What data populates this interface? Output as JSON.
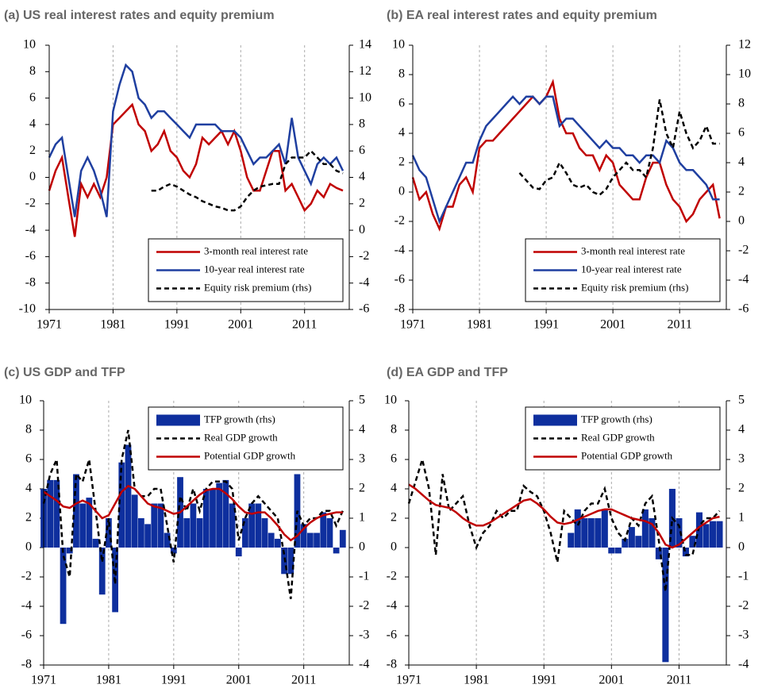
{
  "chart_data": [
    {
      "type": "combo",
      "title": "(a) US real interest rates and equity premium",
      "x": [
        1971,
        1972,
        1973,
        1974,
        1975,
        1976,
        1977,
        1978,
        1979,
        1980,
        1981,
        1982,
        1983,
        1984,
        1985,
        1986,
        1987,
        1988,
        1989,
        1990,
        1991,
        1992,
        1993,
        1994,
        1995,
        1996,
        1997,
        1998,
        1999,
        2000,
        2001,
        2002,
        2003,
        2004,
        2005,
        2006,
        2007,
        2008,
        2009,
        2010,
        2011,
        2012,
        2013,
        2014,
        2015,
        2016,
        2017
      ],
      "xlim": [
        1971,
        2018
      ],
      "xticks": [
        1971,
        1981,
        1991,
        2001,
        2011
      ],
      "xgrid": true,
      "ylim": [
        -10,
        10
      ],
      "yticks": [
        -10,
        -8,
        -6,
        -4,
        -2,
        0,
        2,
        4,
        6,
        8,
        10
      ],
      "y2lim": [
        -6,
        14
      ],
      "y2ticks": [
        -6,
        -4,
        -2,
        0,
        2,
        4,
        6,
        8,
        10,
        12,
        14
      ],
      "legend": "lower right",
      "series": [
        {
          "name": "3-month real interest rate",
          "kind": "line",
          "style": "solid",
          "color": "#c00000",
          "values": [
            -1,
            0.5,
            1.5,
            -1.5,
            -4.5,
            -0.5,
            -1.5,
            -0.5,
            -1.5,
            0,
            4,
            4.5,
            5,
            5.5,
            4,
            3.5,
            2,
            2.5,
            3.5,
            2,
            1.5,
            0.5,
            0,
            1,
            3,
            2.5,
            3,
            3.5,
            2.5,
            3.5,
            2,
            0,
            -1,
            -1,
            0.5,
            2,
            2,
            -1,
            -0.5,
            -1.5,
            -2.5,
            -2,
            -1,
            -1.5,
            -0.5,
            -0.8,
            -1
          ]
        },
        {
          "name": "10-year real interest rate",
          "kind": "line",
          "style": "solid",
          "color": "#1f3fa0",
          "values": [
            1.5,
            2.5,
            3,
            0,
            -3,
            0.5,
            1.5,
            0.5,
            -1,
            -3,
            5,
            7,
            8.5,
            8,
            6,
            5.5,
            4.5,
            5,
            5,
            4.5,
            4,
            3.5,
            3,
            4,
            4,
            4,
            4,
            3.5,
            3.5,
            3.5,
            3,
            2,
            1,
            1.5,
            1.5,
            2,
            2.5,
            1,
            4.5,
            1.5,
            0.5,
            -0.5,
            1,
            1.5,
            1,
            1.5,
            0.5
          ]
        },
        {
          "name": "Equity risk premium (rhs)",
          "kind": "line",
          "style": "dashed",
          "color": "#000000",
          "axis": "y2",
          "values": [
            null,
            null,
            null,
            null,
            null,
            null,
            null,
            null,
            null,
            null,
            null,
            null,
            null,
            null,
            null,
            null,
            3,
            3,
            3.3,
            3.5,
            3.3,
            3,
            2.7,
            2.5,
            2.2,
            2,
            1.8,
            1.7,
            1.5,
            1.5,
            1.8,
            2.5,
            3,
            3.3,
            3.4,
            3.5,
            3.5,
            5,
            5.5,
            5.5,
            5.5,
            6,
            5.5,
            5,
            5,
            4.5,
            4.3
          ]
        }
      ]
    },
    {
      "type": "combo",
      "title": "(b) EA real interest rates and equity premium",
      "x": [
        1971,
        1972,
        1973,
        1974,
        1975,
        1976,
        1977,
        1978,
        1979,
        1980,
        1981,
        1982,
        1983,
        1984,
        1985,
        1986,
        1987,
        1988,
        1989,
        1990,
        1991,
        1992,
        1993,
        1994,
        1995,
        1996,
        1997,
        1998,
        1999,
        2000,
        2001,
        2002,
        2003,
        2004,
        2005,
        2006,
        2007,
        2008,
        2009,
        2010,
        2011,
        2012,
        2013,
        2014,
        2015,
        2016,
        2017
      ],
      "xlim": [
        1971,
        2018
      ],
      "xticks": [
        1971,
        1981,
        1991,
        2001,
        2011
      ],
      "xgrid": true,
      "ylim": [
        -8,
        10
      ],
      "yticks": [
        -8,
        -6,
        -4,
        -2,
        0,
        2,
        4,
        6,
        8,
        10
      ],
      "y2lim": [
        -6,
        12
      ],
      "y2ticks": [
        -6,
        -4,
        -2,
        0,
        2,
        4,
        6,
        8,
        10,
        12
      ],
      "legend": "lower right",
      "series": [
        {
          "name": "3-month real interest rate",
          "kind": "line",
          "style": "solid",
          "color": "#c00000",
          "values": [
            1,
            -0.5,
            0,
            -1.5,
            -2.5,
            -1,
            -1,
            0.5,
            1,
            0,
            3,
            3.5,
            3.5,
            4,
            4.5,
            5,
            5.5,
            6,
            6.5,
            6,
            6.5,
            7.5,
            5,
            4,
            4,
            3,
            2.5,
            2.5,
            1.5,
            2.5,
            2,
            0.5,
            0,
            -0.5,
            -0.5,
            1,
            2,
            2,
            0.5,
            -0.5,
            -1,
            -2,
            -1.5,
            -0.5,
            0,
            0.5,
            -1.8
          ]
        },
        {
          "name": "10-year real interest rate",
          "kind": "line",
          "style": "solid",
          "color": "#1f3fa0",
          "values": [
            2.5,
            1.5,
            1,
            -0.5,
            -2,
            -1,
            0,
            1,
            2,
            2,
            3.5,
            4.5,
            5,
            5.5,
            6,
            6.5,
            6,
            6.5,
            6.5,
            6,
            6.5,
            6.5,
            4.5,
            5,
            5,
            4.5,
            4,
            3.5,
            3,
            3.5,
            3,
            3,
            2.5,
            2.5,
            2,
            2.5,
            2.5,
            2,
            3.5,
            3,
            2,
            1.5,
            1.5,
            1,
            0.5,
            -0.5,
            -0.5
          ]
        },
        {
          "name": "Equity risk premium (rhs)",
          "kind": "line",
          "style": "dashed",
          "color": "#000000",
          "axis": "y2",
          "values": [
            null,
            null,
            null,
            null,
            null,
            null,
            null,
            null,
            null,
            null,
            null,
            null,
            null,
            null,
            null,
            null,
            3.3,
            2.8,
            2.3,
            2.2,
            2.8,
            3,
            4,
            3.3,
            2.5,
            2.3,
            2.5,
            2,
            1.8,
            2.2,
            3,
            3.5,
            4,
            3.5,
            3.5,
            3,
            5,
            8.3,
            6,
            5,
            7.5,
            6,
            5,
            5.5,
            6.5,
            5.3,
            5.3
          ]
        }
      ]
    },
    {
      "type": "combo",
      "title": "(c) US GDP and TFP",
      "x": [
        1971,
        1972,
        1973,
        1974,
        1975,
        1976,
        1977,
        1978,
        1979,
        1980,
        1981,
        1982,
        1983,
        1984,
        1985,
        1986,
        1987,
        1988,
        1989,
        1990,
        1991,
        1992,
        1993,
        1994,
        1995,
        1996,
        1997,
        1998,
        1999,
        2000,
        2001,
        2002,
        2003,
        2004,
        2005,
        2006,
        2007,
        2008,
        2009,
        2010,
        2011,
        2012,
        2013,
        2014,
        2015,
        2016,
        2017
      ],
      "xlim": [
        1971,
        2018
      ],
      "xticks": [
        1971,
        1981,
        1991,
        2001,
        2011
      ],
      "xgrid": true,
      "ylim": [
        -8,
        10
      ],
      "yticks": [
        -8,
        -6,
        -4,
        -2,
        0,
        2,
        4,
        6,
        8,
        10
      ],
      "y2lim": [
        -4,
        5
      ],
      "y2ticks": [
        -4,
        -3,
        -2,
        -1,
        0,
        1,
        2,
        3,
        4,
        5
      ],
      "legend": "upper right",
      "series": [
        {
          "name": "TFP growth (rhs)",
          "kind": "bar",
          "style": "solid",
          "color": "#0e2f9e",
          "axis": "y2",
          "values": [
            2,
            2.3,
            2.3,
            -2.6,
            -0.2,
            2.5,
            1.5,
            1.7,
            0.3,
            -1.6,
            1,
            -2.2,
            2.9,
            3.5,
            1.8,
            1,
            0.8,
            1.5,
            1.5,
            0.5,
            -0.2,
            2.4,
            1,
            1.5,
            1,
            2,
            2,
            2.2,
            2.3,
            1.5,
            -0.3,
            1,
            1.5,
            1.5,
            1,
            0.5,
            0.3,
            -0.9,
            -0.9,
            2.5,
            0.8,
            0.5,
            0.5,
            1.2,
            1,
            -0.2,
            0.6
          ]
        },
        {
          "name": "Real GDP growth",
          "kind": "line",
          "style": "dashed",
          "color": "#000000",
          "values": [
            3,
            5,
            6,
            -0.5,
            -2,
            5,
            4.5,
            6,
            2.5,
            -1,
            2,
            -2.5,
            6,
            8,
            4,
            3.5,
            3.5,
            4,
            4,
            1.5,
            -1,
            3.5,
            2.5,
            4,
            2.5,
            4,
            4.5,
            4.5,
            4.5,
            4,
            0.5,
            2,
            3,
            3.5,
            3,
            2.5,
            2,
            -0.5,
            -3.5,
            2.5,
            1.5,
            2,
            2,
            2.5,
            2.5,
            1.5,
            2.5
          ]
        },
        {
          "name": "Potential GDP growth",
          "kind": "line",
          "style": "solid",
          "color": "#c00000",
          "values": [
            3.8,
            3.5,
            3.2,
            2.8,
            2.7,
            3,
            3.2,
            3,
            2.5,
            2,
            2.2,
            3,
            3.8,
            4.2,
            4,
            3.5,
            3,
            2.8,
            2.7,
            2.5,
            2.3,
            2.4,
            2.8,
            3.2,
            3.6,
            3.9,
            4,
            4,
            3.7,
            3.3,
            2.8,
            2.4,
            2.3,
            2.4,
            2.4,
            2,
            1.5,
            0.9,
            0.5,
            0.8,
            1.3,
            1.7,
            2,
            2.2,
            2.3,
            2.4,
            2.4
          ]
        }
      ]
    },
    {
      "type": "combo",
      "title": "(d) EA GDP and TFP",
      "x": [
        1971,
        1972,
        1973,
        1974,
        1975,
        1976,
        1977,
        1978,
        1979,
        1980,
        1981,
        1982,
        1983,
        1984,
        1985,
        1986,
        1987,
        1988,
        1989,
        1990,
        1991,
        1992,
        1993,
        1994,
        1995,
        1996,
        1997,
        1998,
        1999,
        2000,
        2001,
        2002,
        2003,
        2004,
        2005,
        2006,
        2007,
        2008,
        2009,
        2010,
        2011,
        2012,
        2013,
        2014,
        2015,
        2016,
        2017
      ],
      "xlim": [
        1971,
        2018
      ],
      "xticks": [
        1971,
        1981,
        1991,
        2001,
        2011
      ],
      "xgrid": true,
      "ylim": [
        -8,
        10
      ],
      "yticks": [
        -8,
        -6,
        -4,
        -2,
        0,
        2,
        4,
        6,
        8,
        10
      ],
      "y2lim": [
        -4,
        5
      ],
      "y2ticks": [
        -4,
        -3,
        -2,
        -1,
        0,
        1,
        2,
        3,
        4,
        5
      ],
      "legend": "upper right",
      "series": [
        {
          "name": "TFP growth (rhs)",
          "kind": "bar",
          "style": "solid",
          "color": "#0e2f9e",
          "axis": "y2",
          "values": [
            null,
            null,
            null,
            null,
            null,
            null,
            null,
            null,
            null,
            null,
            null,
            null,
            null,
            null,
            null,
            null,
            null,
            null,
            null,
            null,
            null,
            null,
            null,
            null,
            0.5,
            1.3,
            1,
            1,
            1,
            1.3,
            -0.2,
            -0.2,
            0.3,
            0.7,
            0.4,
            1.3,
            1,
            -0.4,
            -3.9,
            2,
            1,
            -0.3,
            0.4,
            1.2,
            0.8,
            0.9,
            0.9
          ]
        },
        {
          "name": "Real GDP growth",
          "kind": "line",
          "style": "dashed",
          "color": "#000000",
          "values": [
            3,
            4.5,
            6,
            4,
            -0.5,
            5,
            2.5,
            3,
            3.5,
            1.5,
            0,
            1,
            1.5,
            2.5,
            2,
            2.5,
            2.5,
            4.2,
            3.8,
            3.5,
            2.5,
            1,
            -1,
            2.5,
            2,
            1.5,
            2.5,
            3,
            3,
            4,
            2,
            1,
            0.5,
            2,
            1.5,
            3,
            3.5,
            0.5,
            -3,
            2,
            1.5,
            -0.5,
            -0.5,
            1.5,
            2,
            2,
            2.5
          ]
        },
        {
          "name": "Potential GDP growth",
          "kind": "line",
          "style": "solid",
          "color": "#c00000",
          "values": [
            4.3,
            4,
            3.6,
            3.2,
            2.9,
            2.8,
            2.7,
            2.4,
            2,
            1.7,
            1.5,
            1.5,
            1.7,
            2,
            2.3,
            2.6,
            2.9,
            3.2,
            3.3,
            3,
            2.6,
            2.1,
            1.7,
            1.6,
            1.7,
            1.9,
            2.1,
            2.3,
            2.5,
            2.6,
            2.6,
            2.4,
            2.2,
            2,
            1.9,
            1.8,
            1.6,
            1,
            0.2,
            0,
            0.2,
            0.6,
            1,
            1.4,
            1.7,
            2,
            2.1
          ]
        }
      ]
    }
  ]
}
